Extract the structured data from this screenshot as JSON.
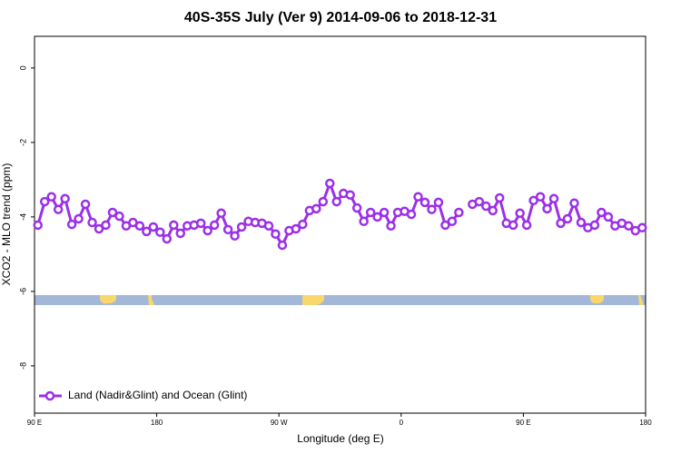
{
  "chart_data": {
    "type": "line",
    "title": "40S-35S July (Ver 9)   2014-09-06 to 2018-12-31",
    "x_label": "Longitude (deg E)",
    "y_label": "XCO2 - MLO trend (ppm)",
    "x": [
      92.5,
      97.5,
      102.5,
      107.5,
      112.5,
      117.5,
      122.5,
      127.5,
      132.5,
      137.5,
      142.5,
      147.5,
      152.5,
      157.5,
      162.5,
      167.5,
      172.5,
      177.5,
      182.5,
      187.5,
      192.5,
      197.5,
      202.5,
      207.5,
      212.5,
      217.5,
      222.5,
      227.5,
      232.5,
      237.5,
      242.5,
      247.5,
      252.5,
      257.5,
      262.5,
      267.5,
      272.5,
      277.5,
      282.5,
      287.5,
      292.5,
      297.5,
      302.5,
      307.5,
      312.5,
      317.5,
      322.5,
      327.5,
      332.5,
      337.5,
      342.5,
      347.5,
      352.5,
      357.5,
      362.5,
      367.5,
      372.5,
      377.5,
      382.5,
      387.5,
      392.5,
      397.5,
      402.5,
      407.5,
      412.5,
      417.5,
      422.5,
      427.5,
      432.5,
      437.5,
      442.5,
      447.5,
      452.5,
      457.5,
      462.5,
      467.5,
      472.5,
      477.5,
      482.5,
      487.5,
      492.5,
      497.5,
      502.5,
      507.5,
      512.5,
      517.5,
      522.5,
      527.5,
      532.5,
      537.5
    ],
    "series": [
      {
        "name": "Land (Nadir&Glint) and Ocean (Glint)",
        "color": "#9b30e8",
        "values": [
          -4.22,
          -3.59,
          -3.46,
          -3.8,
          -3.51,
          -4.2,
          -4.05,
          -3.66,
          -4.15,
          -4.32,
          -4.22,
          -3.88,
          -3.98,
          -4.24,
          -4.15,
          -4.24,
          -4.39,
          -4.27,
          -4.41,
          -4.59,
          -4.22,
          -4.44,
          -4.24,
          -4.22,
          -4.17,
          -4.37,
          -4.22,
          -3.9,
          -4.34,
          -4.51,
          -4.27,
          -4.12,
          -4.15,
          -4.17,
          -4.24,
          -4.46,
          -4.76,
          -4.37,
          -4.32,
          -4.2,
          -3.83,
          -3.78,
          -3.59,
          -3.1,
          -3.59,
          -3.37,
          -3.41,
          -3.76,
          -4.12,
          -3.88,
          -4.0,
          -3.88,
          -4.24,
          -3.88,
          -3.85,
          -3.93,
          -3.46,
          -3.61,
          -3.8,
          -3.61,
          -4.22,
          -4.12,
          -3.88,
          null,
          -3.66,
          -3.59,
          -3.71,
          -3.83,
          -3.49,
          -4.17,
          -4.22,
          -3.9,
          -4.22,
          -3.56,
          -3.46,
          -3.78,
          -3.51,
          -4.17,
          -4.05,
          -3.63,
          -4.15,
          -4.29,
          -4.22,
          -3.88,
          -4.0,
          -4.24,
          -4.17,
          -4.24,
          -4.37,
          -4.29
        ]
      }
    ],
    "xlim": [
      90,
      540
    ],
    "xticks": [
      {
        "value": 90,
        "label": "90 E"
      },
      180,
      {
        "value": 270,
        "label": "90 W"
      },
      {
        "value": 360,
        "label": "0"
      },
      {
        "value": 450,
        "label": "90 E"
      },
      {
        "value": 540,
        "label": "180"
      }
    ],
    "ylim": [
      -9.27,
      0.85
    ],
    "yticks": [
      -8,
      -6,
      -4,
      -2,
      0
    ],
    "legend": "bottom-left"
  }
}
